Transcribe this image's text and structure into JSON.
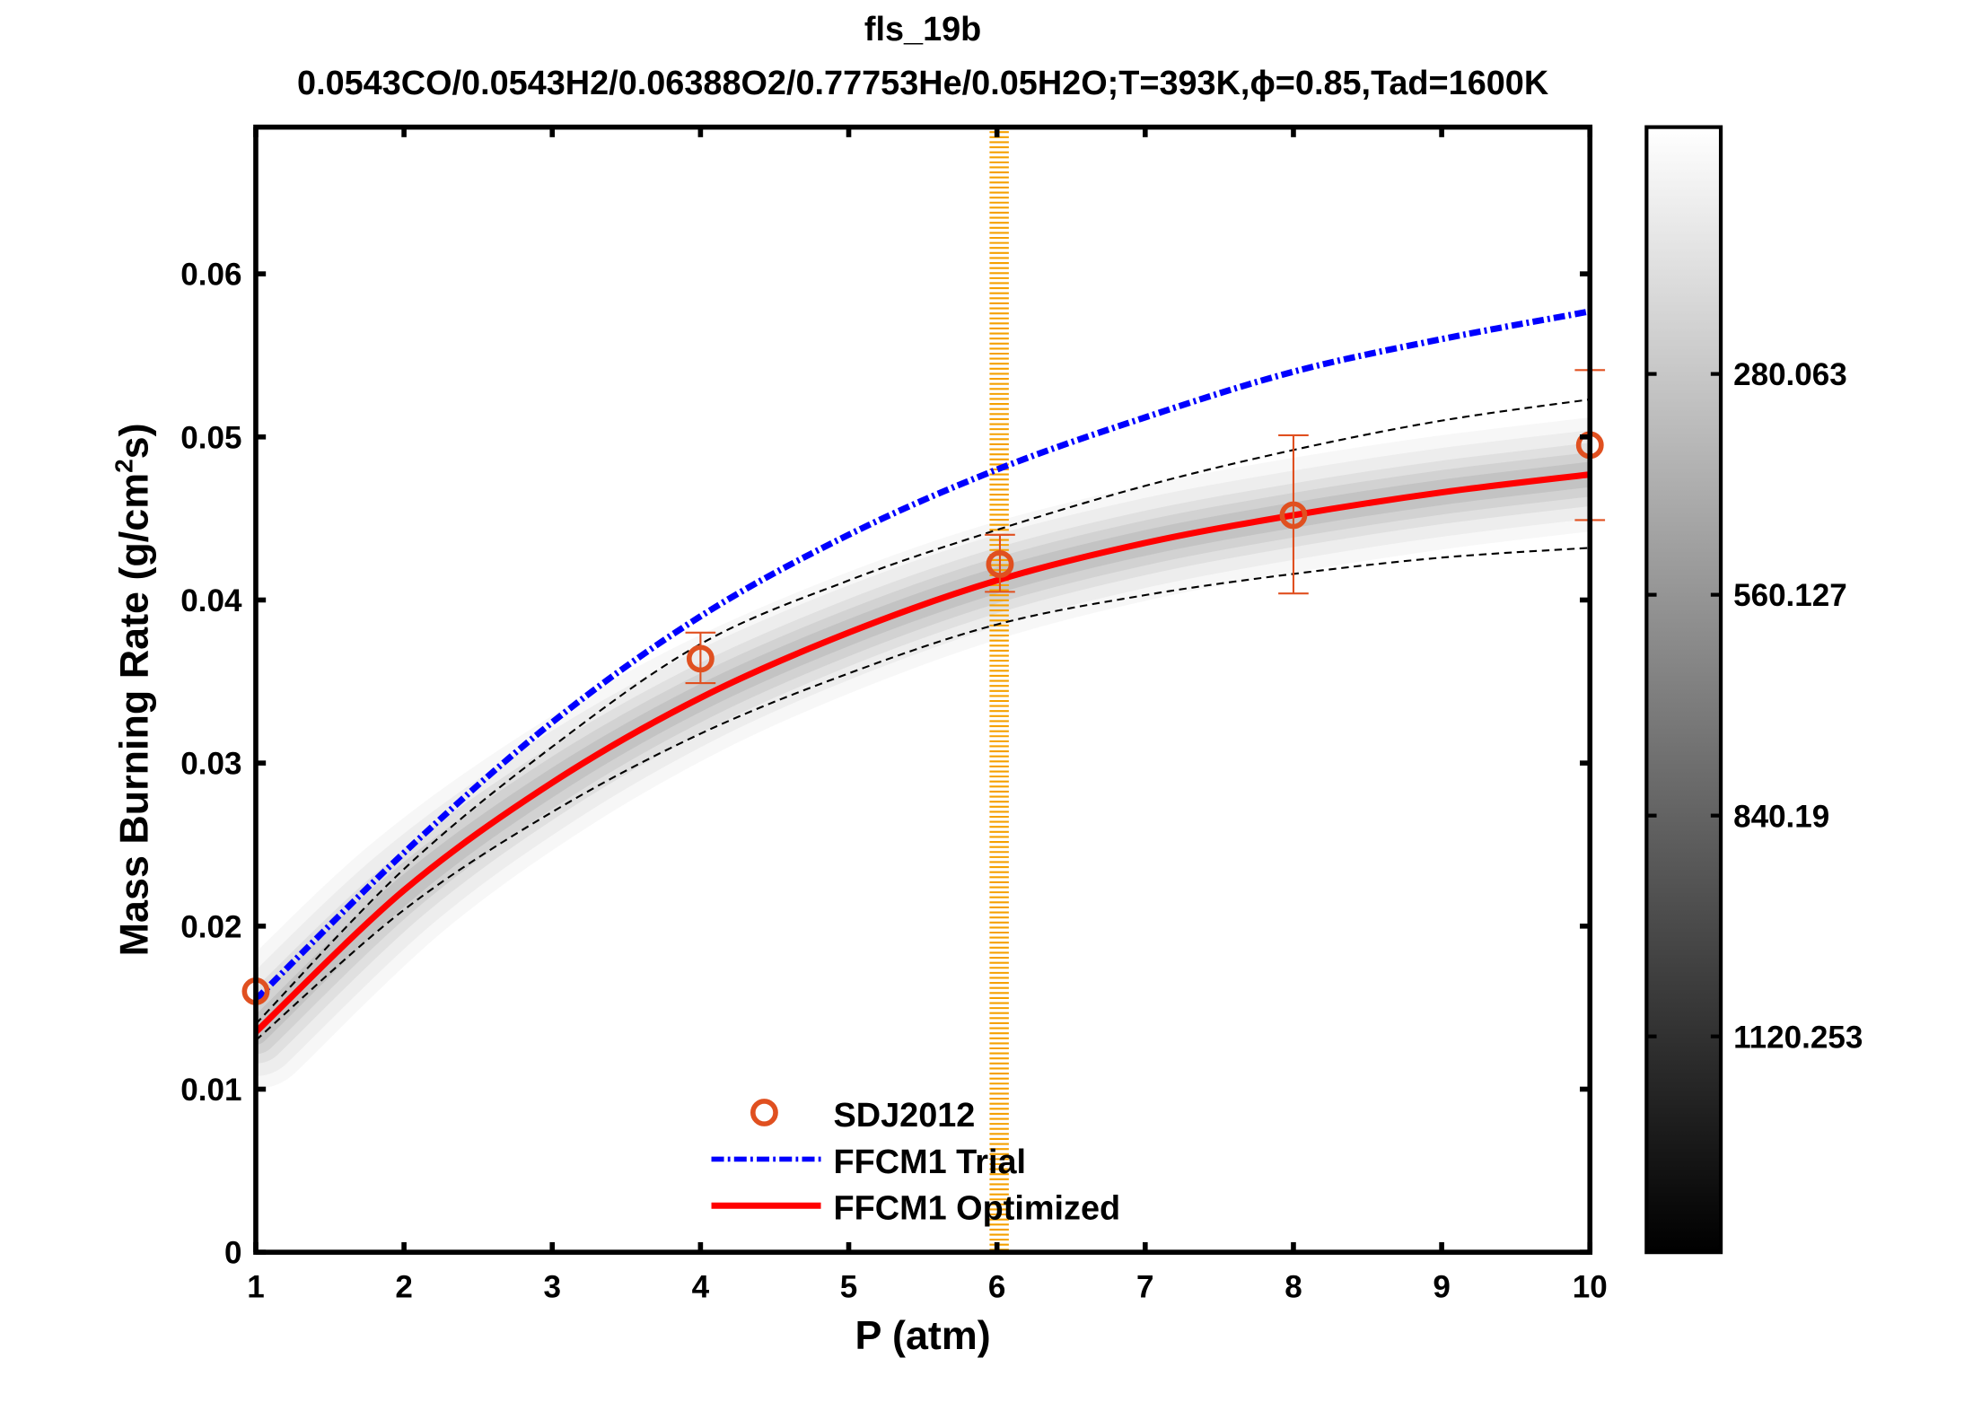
{
  "chart_data": {
    "type": "line",
    "title": "fls_19b",
    "subtitle": "0.0543CO/0.0543H2/0.06388O2/0.77753He/0.05H2O;T=393K,ϕ=0.85,Tad=1600K",
    "xlabel": "P (atm)",
    "ylabel": "Mass Burning Rate (g/cm²s)",
    "ylabel_parts": {
      "pre": "Mass Burning Rate (g/cm",
      "sup": "2",
      "post": "s)"
    },
    "xlim": [
      1,
      10
    ],
    "ylim": [
      0,
      0.069
    ],
    "xticks": [
      "1",
      "2",
      "3",
      "4",
      "5",
      "6",
      "7",
      "8",
      "9",
      "10"
    ],
    "yticks": [
      "0",
      "0.01",
      "0.02",
      "0.03",
      "0.04",
      "0.05",
      "0.06"
    ],
    "grid": false,
    "legend_placement": "bottom-center",
    "highlight_band": {
      "x": [
        5.95,
        6.08
      ],
      "color": "#f5a000"
    },
    "series": [
      {
        "name": "SDJ2012",
        "kind": "scatter",
        "color": "#e05020",
        "x": [
          1,
          4,
          6.02,
          8,
          10
        ],
        "y": [
          0.016,
          0.0364,
          0.0422,
          0.0452,
          0.0495
        ],
        "err_low": [
          null,
          0.0349,
          0.0405,
          0.0404,
          0.0449
        ],
        "err_high": [
          null,
          0.038,
          0.044,
          0.0501,
          0.0541
        ]
      },
      {
        "name": "FFCM1 Trial",
        "kind": "line",
        "style": "dash-dot",
        "color": "#0000ff",
        "x": [
          1,
          2,
          3,
          4,
          5,
          6,
          7,
          8,
          9,
          10
        ],
        "y": [
          0.0155,
          0.0245,
          0.0325,
          0.039,
          0.044,
          0.048,
          0.0512,
          0.054,
          0.056,
          0.0577
        ]
      },
      {
        "name": "FFCM1 Optimized",
        "kind": "line",
        "style": "solid",
        "color": "#ff0000",
        "x": [
          1,
          2,
          3,
          4,
          5,
          6,
          7,
          8,
          9,
          10
        ],
        "y": [
          0.0135,
          0.0222,
          0.0288,
          0.034,
          0.038,
          0.0412,
          0.0435,
          0.0452,
          0.0466,
          0.0477
        ]
      },
      {
        "kind": "line",
        "style": "dashed",
        "color": "#000000",
        "x": [
          1,
          2,
          3,
          4,
          5,
          6,
          7,
          8,
          9,
          10
        ],
        "y": [
          0.014,
          0.0235,
          0.031,
          0.0373,
          0.0412,
          0.0443,
          0.047,
          0.0492,
          0.051,
          0.0523
        ]
      },
      {
        "kind": "line",
        "style": "dashed",
        "color": "#000000",
        "x": [
          1,
          2,
          3,
          4,
          5,
          6,
          7,
          8,
          9,
          10
        ],
        "y": [
          0.013,
          0.021,
          0.027,
          0.0318,
          0.0355,
          0.0385,
          0.0403,
          0.0416,
          0.0426,
          0.0432
        ]
      }
    ],
    "colorbar": {
      "colormap": "gray (white top, black bottom)",
      "ticks": [
        "280.063",
        "560.127",
        "840.19",
        "1120.253"
      ],
      "tick_values": [
        280.063,
        560.127,
        840.19,
        1120.253
      ],
      "range": [
        -33,
        1394
      ]
    }
  }
}
